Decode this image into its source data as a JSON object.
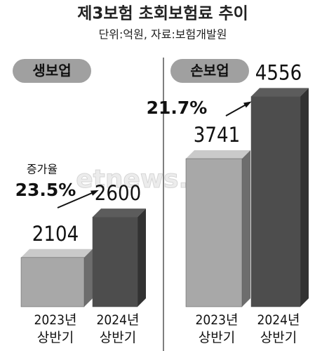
{
  "header": {
    "title": "제3보험 초회보험료 추이",
    "subtitle": "단위:억원, 자료:보험개발원",
    "watermark": "etnews.com"
  },
  "chart_data": [
    {
      "type": "bar",
      "title": "생보업",
      "categories": [
        "2023년\n상반기",
        "2024년\n상반기"
      ],
      "values": [
        2104,
        2600
      ],
      "growth_label": "증가율",
      "growth": "23.5%",
      "colors": [
        "#a8a8a8",
        "#4d4d4d"
      ],
      "ylim": [
        1500,
        4400
      ]
    },
    {
      "type": "bar",
      "title": "손보업",
      "categories": [
        "2023년\n상반기",
        "2024년\n상반기"
      ],
      "values": [
        3741,
        4556
      ],
      "growth": "21.7%",
      "colors": [
        "#a8a8a8",
        "#4d4d4d"
      ],
      "ylim": [
        1800,
        4900
      ]
    }
  ]
}
